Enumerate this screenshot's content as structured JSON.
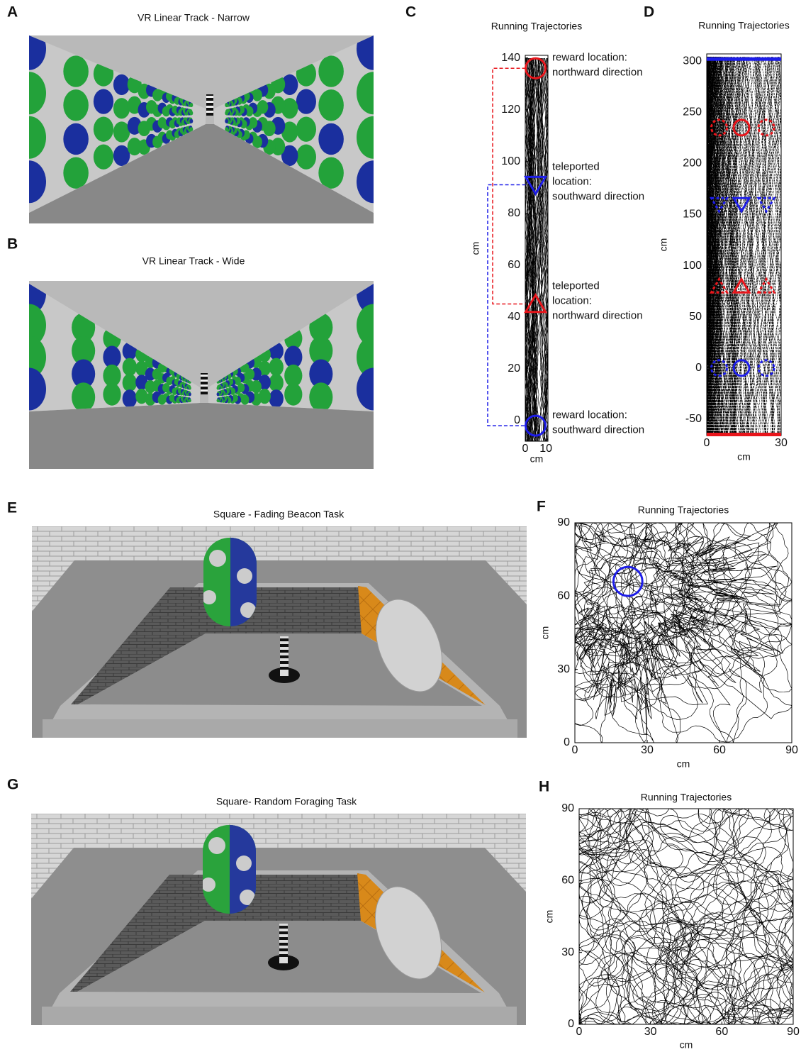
{
  "panels": [
    {
      "letter": "A",
      "title": "VR Linear Track - Narrow"
    },
    {
      "letter": "B",
      "title": "VR Linear Track - Wide"
    },
    {
      "letter": "E",
      "title": "Square - Fading Beacon Task"
    },
    {
      "letter": "G",
      "title": "Square- Random Foraging Task"
    }
  ],
  "chart_data": [
    {
      "panel": "C",
      "type": "trajectory",
      "title": "Running Trajectories",
      "xlabel": "cm",
      "ylabel": "cm",
      "xlim": [
        0,
        11
      ],
      "ylim": [
        -8,
        141
      ],
      "xticks": [
        0,
        10
      ],
      "yticks": [
        0,
        20,
        40,
        60,
        80,
        100,
        120,
        140
      ],
      "connectors": true,
      "markers": [
        {
          "shape": "circle",
          "x": 5,
          "y": 136,
          "color": "#e8151b",
          "style": "solid",
          "label_lines": [
            "reward location:",
            "northward direction"
          ]
        },
        {
          "shape": "triangle-down",
          "x": 5,
          "y": 91,
          "color": "#1d1de8",
          "style": "solid",
          "label_lines": [
            "teleported",
            "location:",
            "southward direction"
          ]
        },
        {
          "shape": "triangle-up",
          "x": 5,
          "y": 45,
          "color": "#e8151b",
          "style": "solid",
          "label_lines": [
            "teleported",
            "location:",
            "northward direction"
          ]
        },
        {
          "shape": "circle",
          "x": 5,
          "y": -2,
          "color": "#1d1de8",
          "style": "solid",
          "label_lines": [
            "reward location:",
            "southward direction"
          ]
        }
      ]
    },
    {
      "panel": "D",
      "type": "trajectory",
      "title": "Running Trajectories",
      "xlabel": "cm",
      "ylabel": "cm",
      "xlim": [
        0,
        30
      ],
      "ylim": [
        -66,
        307
      ],
      "xticks": [
        0,
        30
      ],
      "yticks": [
        -50,
        0,
        50,
        100,
        150,
        200,
        250,
        300
      ],
      "lines": [
        {
          "y": 302,
          "color": "#1d1de8"
        },
        {
          "y": -65,
          "color": "#e8151b"
        }
      ],
      "markers": [
        {
          "shape": "circle",
          "x": 5,
          "y": 235,
          "color": "#e8151b",
          "style": "dashed"
        },
        {
          "shape": "circle",
          "x": 14,
          "y": 235,
          "color": "#e8151b",
          "style": "solid"
        },
        {
          "shape": "circle",
          "x": 24,
          "y": 235,
          "color": "#e8151b",
          "style": "dashed"
        },
        {
          "shape": "triangle-down",
          "x": 5,
          "y": 160,
          "color": "#1d1de8",
          "style": "dashed"
        },
        {
          "shape": "triangle-down",
          "x": 14,
          "y": 160,
          "color": "#1d1de8",
          "style": "solid"
        },
        {
          "shape": "triangle-down",
          "x": 24,
          "y": 160,
          "color": "#1d1de8",
          "style": "dashed"
        },
        {
          "shape": "triangle-up",
          "x": 5,
          "y": 80,
          "color": "#e8151b",
          "style": "dashed"
        },
        {
          "shape": "triangle-up",
          "x": 14,
          "y": 80,
          "color": "#e8151b",
          "style": "solid"
        },
        {
          "shape": "triangle-up",
          "x": 24,
          "y": 80,
          "color": "#e8151b",
          "style": "dashed"
        },
        {
          "shape": "circle",
          "x": 5,
          "y": 0,
          "color": "#1d1de8",
          "style": "dashed"
        },
        {
          "shape": "circle",
          "x": 14,
          "y": 0,
          "color": "#1d1de8",
          "style": "solid"
        },
        {
          "shape": "circle",
          "x": 24,
          "y": 0,
          "color": "#1d1de8",
          "style": "dashed"
        }
      ]
    },
    {
      "panel": "F",
      "type": "trajectory",
      "title": "Running Trajectories",
      "xlabel": "cm",
      "ylabel": "cm",
      "xlim": [
        0,
        90
      ],
      "ylim": [
        0,
        90
      ],
      "xticks": [
        0,
        30,
        60,
        90
      ],
      "yticks": [
        0,
        30,
        60,
        90
      ],
      "markers": [
        {
          "shape": "circle",
          "x": 22,
          "y": 66,
          "radius": 6,
          "color": "#1d1de8",
          "style": "solid"
        }
      ]
    },
    {
      "panel": "H",
      "type": "trajectory",
      "title": "Running Trajectories",
      "xlabel": "cm",
      "ylabel": "cm",
      "xlim": [
        0,
        90
      ],
      "ylim": [
        0,
        90
      ],
      "xticks": [
        0,
        30,
        60,
        90
      ],
      "yticks": [
        0,
        30,
        60,
        90
      ]
    }
  ]
}
